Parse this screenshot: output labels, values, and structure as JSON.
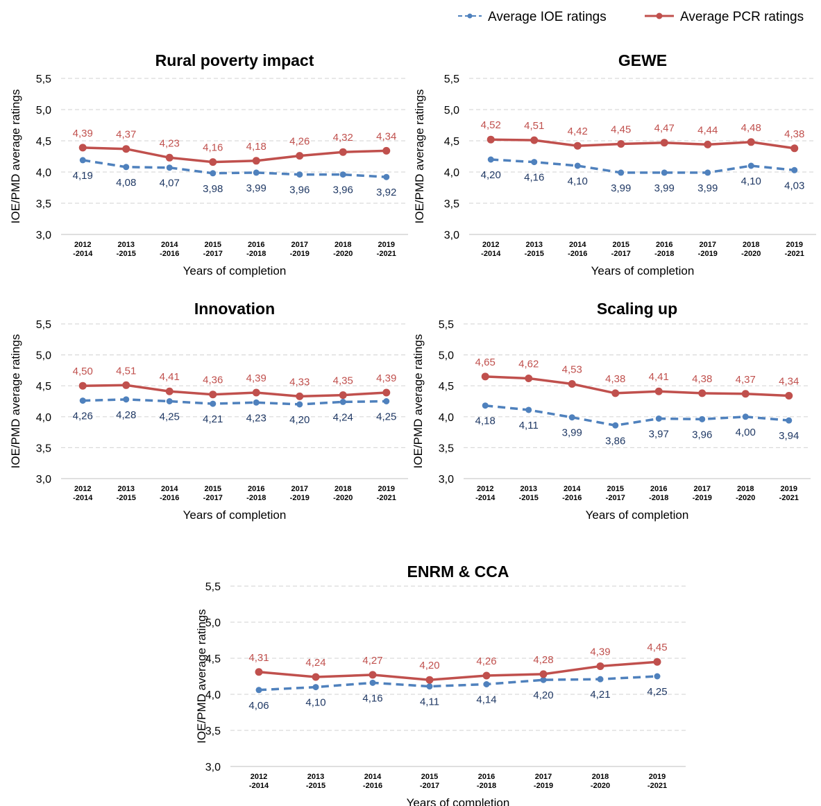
{
  "legend": {
    "ioe_label": "Average IOE ratings",
    "pcr_label": "Average PCR ratings"
  },
  "colors": {
    "ioe": "#4f81bd",
    "ioe_label": "#1f3864",
    "pcr": "#c0504d",
    "pcr_label": "#c0504d",
    "grid": "#d9d9d9",
    "axis": "#bfbfbf",
    "text": "#000000"
  },
  "chart_data": [
    {
      "type": "line",
      "title": "Rural poverty impact",
      "xlabel": "Years of completion",
      "ylabel": "IOE/PMD average ratings",
      "ylim": [
        3.0,
        5.5
      ],
      "yticks": [
        "3,0",
        "3,5",
        "4,0",
        "4,5",
        "5,0",
        "5,5"
      ],
      "grid": true,
      "categories": [
        [
          "2012",
          "-2014"
        ],
        [
          "2013",
          "-2015"
        ],
        [
          "2014",
          "-2016"
        ],
        [
          "2015",
          "-2017"
        ],
        [
          "2016",
          "-2018"
        ],
        [
          "2017",
          "-2019"
        ],
        [
          "2018",
          "-2020"
        ],
        [
          "2019",
          "-2021"
        ]
      ],
      "series": [
        {
          "name": "Average IOE ratings",
          "values": [
            4.19,
            4.08,
            4.07,
            3.98,
            3.99,
            3.96,
            3.96,
            3.92
          ],
          "labels": [
            "4,19",
            "4,08",
            "4,07",
            "3,98",
            "3,99",
            "3,96",
            "3,96",
            "3,92"
          ]
        },
        {
          "name": "Average PCR ratings",
          "values": [
            4.39,
            4.37,
            4.23,
            4.16,
            4.18,
            4.26,
            4.32,
            4.34
          ],
          "labels": [
            "4,39",
            "4,37",
            "4,23",
            "4,16",
            "4,18",
            "4,26",
            "4,32",
            "4,34"
          ]
        }
      ]
    },
    {
      "type": "line",
      "title": "GEWE",
      "xlabel": "Years of completion",
      "ylabel": "IOE/PMD average ratings",
      "ylim": [
        3.0,
        5.5
      ],
      "yticks": [
        "3,0",
        "3,5",
        "4,0",
        "4,5",
        "5,0",
        "5,5"
      ],
      "grid": true,
      "categories": [
        [
          "2012",
          "-2014"
        ],
        [
          "2013",
          "-2015"
        ],
        [
          "2014",
          "-2016"
        ],
        [
          "2015",
          "-2017"
        ],
        [
          "2016",
          "-2018"
        ],
        [
          "2017",
          "-2019"
        ],
        [
          "2018",
          "-2020"
        ],
        [
          "2019",
          "-2021"
        ]
      ],
      "series": [
        {
          "name": "Average IOE ratings",
          "values": [
            4.2,
            4.16,
            4.1,
            3.99,
            3.99,
            3.99,
            4.1,
            4.03
          ],
          "labels": [
            "4,20",
            "4,16",
            "4,10",
            "3,99",
            "3,99",
            "3,99",
            "4,10",
            "4,03"
          ]
        },
        {
          "name": "Average PCR ratings",
          "values": [
            4.52,
            4.51,
            4.42,
            4.45,
            4.47,
            4.44,
            4.48,
            4.38
          ],
          "labels": [
            "4,52",
            "4,51",
            "4,42",
            "4,45",
            "4,47",
            "4,44",
            "4,48",
            "4,38"
          ]
        }
      ]
    },
    {
      "type": "line",
      "title": "Innovation",
      "xlabel": "Years of completion",
      "ylabel": "IOE/PMD average ratings",
      "ylim": [
        3.0,
        5.5
      ],
      "yticks": [
        "3,0",
        "3,5",
        "4,0",
        "4,5",
        "5,0",
        "5,5"
      ],
      "grid": true,
      "categories": [
        [
          "2012",
          "-2014"
        ],
        [
          "2013",
          "-2015"
        ],
        [
          "2014",
          "-2016"
        ],
        [
          "2015",
          "-2017"
        ],
        [
          "2016",
          "-2018"
        ],
        [
          "2017",
          "-2019"
        ],
        [
          "2018",
          "-2020"
        ],
        [
          "2019",
          "-2021"
        ]
      ],
      "series": [
        {
          "name": "Average IOE ratings",
          "values": [
            4.26,
            4.28,
            4.25,
            4.21,
            4.23,
            4.2,
            4.24,
            4.25
          ],
          "labels": [
            "4,26",
            "4,28",
            "4,25",
            "4,21",
            "4,23",
            "4,20",
            "4,24",
            "4,25"
          ]
        },
        {
          "name": "Average PCR ratings",
          "values": [
            4.5,
            4.51,
            4.41,
            4.36,
            4.39,
            4.33,
            4.35,
            4.39
          ],
          "labels": [
            "4,50",
            "4,51",
            "4,41",
            "4,36",
            "4,39",
            "4,33",
            "4,35",
            "4,39"
          ]
        }
      ]
    },
    {
      "type": "line",
      "title": "Scaling up",
      "xlabel": "Years of completion",
      "ylabel": "IOE/PMD average ratings",
      "ylim": [
        3.0,
        5.5
      ],
      "yticks": [
        "3,0",
        "3,5",
        "4,0",
        "4,5",
        "5,0",
        "5,5"
      ],
      "grid": true,
      "categories": [
        [
          "2012",
          "-2014"
        ],
        [
          "2013",
          "-2015"
        ],
        [
          "2014",
          "-2016"
        ],
        [
          "2015",
          "-2017"
        ],
        [
          "2016",
          "-2018"
        ],
        [
          "2017",
          "-2019"
        ],
        [
          "2018",
          "-2020"
        ],
        [
          "2019",
          "-2021"
        ]
      ],
      "series": [
        {
          "name": "Average IOE ratings",
          "values": [
            4.18,
            4.11,
            3.99,
            3.86,
            3.97,
            3.96,
            4.0,
            3.94
          ],
          "labels": [
            "4,18",
            "4,11",
            "3,99",
            "3,86",
            "3,97",
            "3,96",
            "4,00",
            "3,94"
          ]
        },
        {
          "name": "Average PCR ratings",
          "values": [
            4.65,
            4.62,
            4.53,
            4.38,
            4.41,
            4.38,
            4.37,
            4.34
          ],
          "labels": [
            "4,65",
            "4,62",
            "4,53",
            "4,38",
            "4,41",
            "4,38",
            "4,37",
            "4,34"
          ]
        }
      ]
    },
    {
      "type": "line",
      "title": "ENRM & CCA",
      "xlabel": "Years of completion",
      "ylabel": "IOE/PMD average ratings",
      "ylim": [
        3.0,
        5.5
      ],
      "yticks": [
        "3,0",
        "3,5",
        "4,0",
        "4,5",
        "5,0",
        "5,5"
      ],
      "grid": true,
      "categories": [
        [
          "2012",
          "-2014"
        ],
        [
          "2013",
          "-2015"
        ],
        [
          "2014",
          "-2016"
        ],
        [
          "2015",
          "-2017"
        ],
        [
          "2016",
          "-2018"
        ],
        [
          "2017",
          "-2019"
        ],
        [
          "2018",
          "-2020"
        ],
        [
          "2019",
          "-2021"
        ]
      ],
      "series": [
        {
          "name": "Average IOE ratings",
          "values": [
            4.06,
            4.1,
            4.16,
            4.11,
            4.14,
            4.2,
            4.21,
            4.25
          ],
          "labels": [
            "4,06",
            "4,10",
            "4,16",
            "4,11",
            "4,14",
            "4,20",
            "4,21",
            "4,25"
          ]
        },
        {
          "name": "Average PCR ratings",
          "values": [
            4.31,
            4.24,
            4.27,
            4.2,
            4.26,
            4.28,
            4.39,
            4.45
          ],
          "labels": [
            "4,31",
            "4,24",
            "4,27",
            "4,20",
            "4,26",
            "4,28",
            "4,39",
            "4,45"
          ]
        }
      ]
    }
  ]
}
